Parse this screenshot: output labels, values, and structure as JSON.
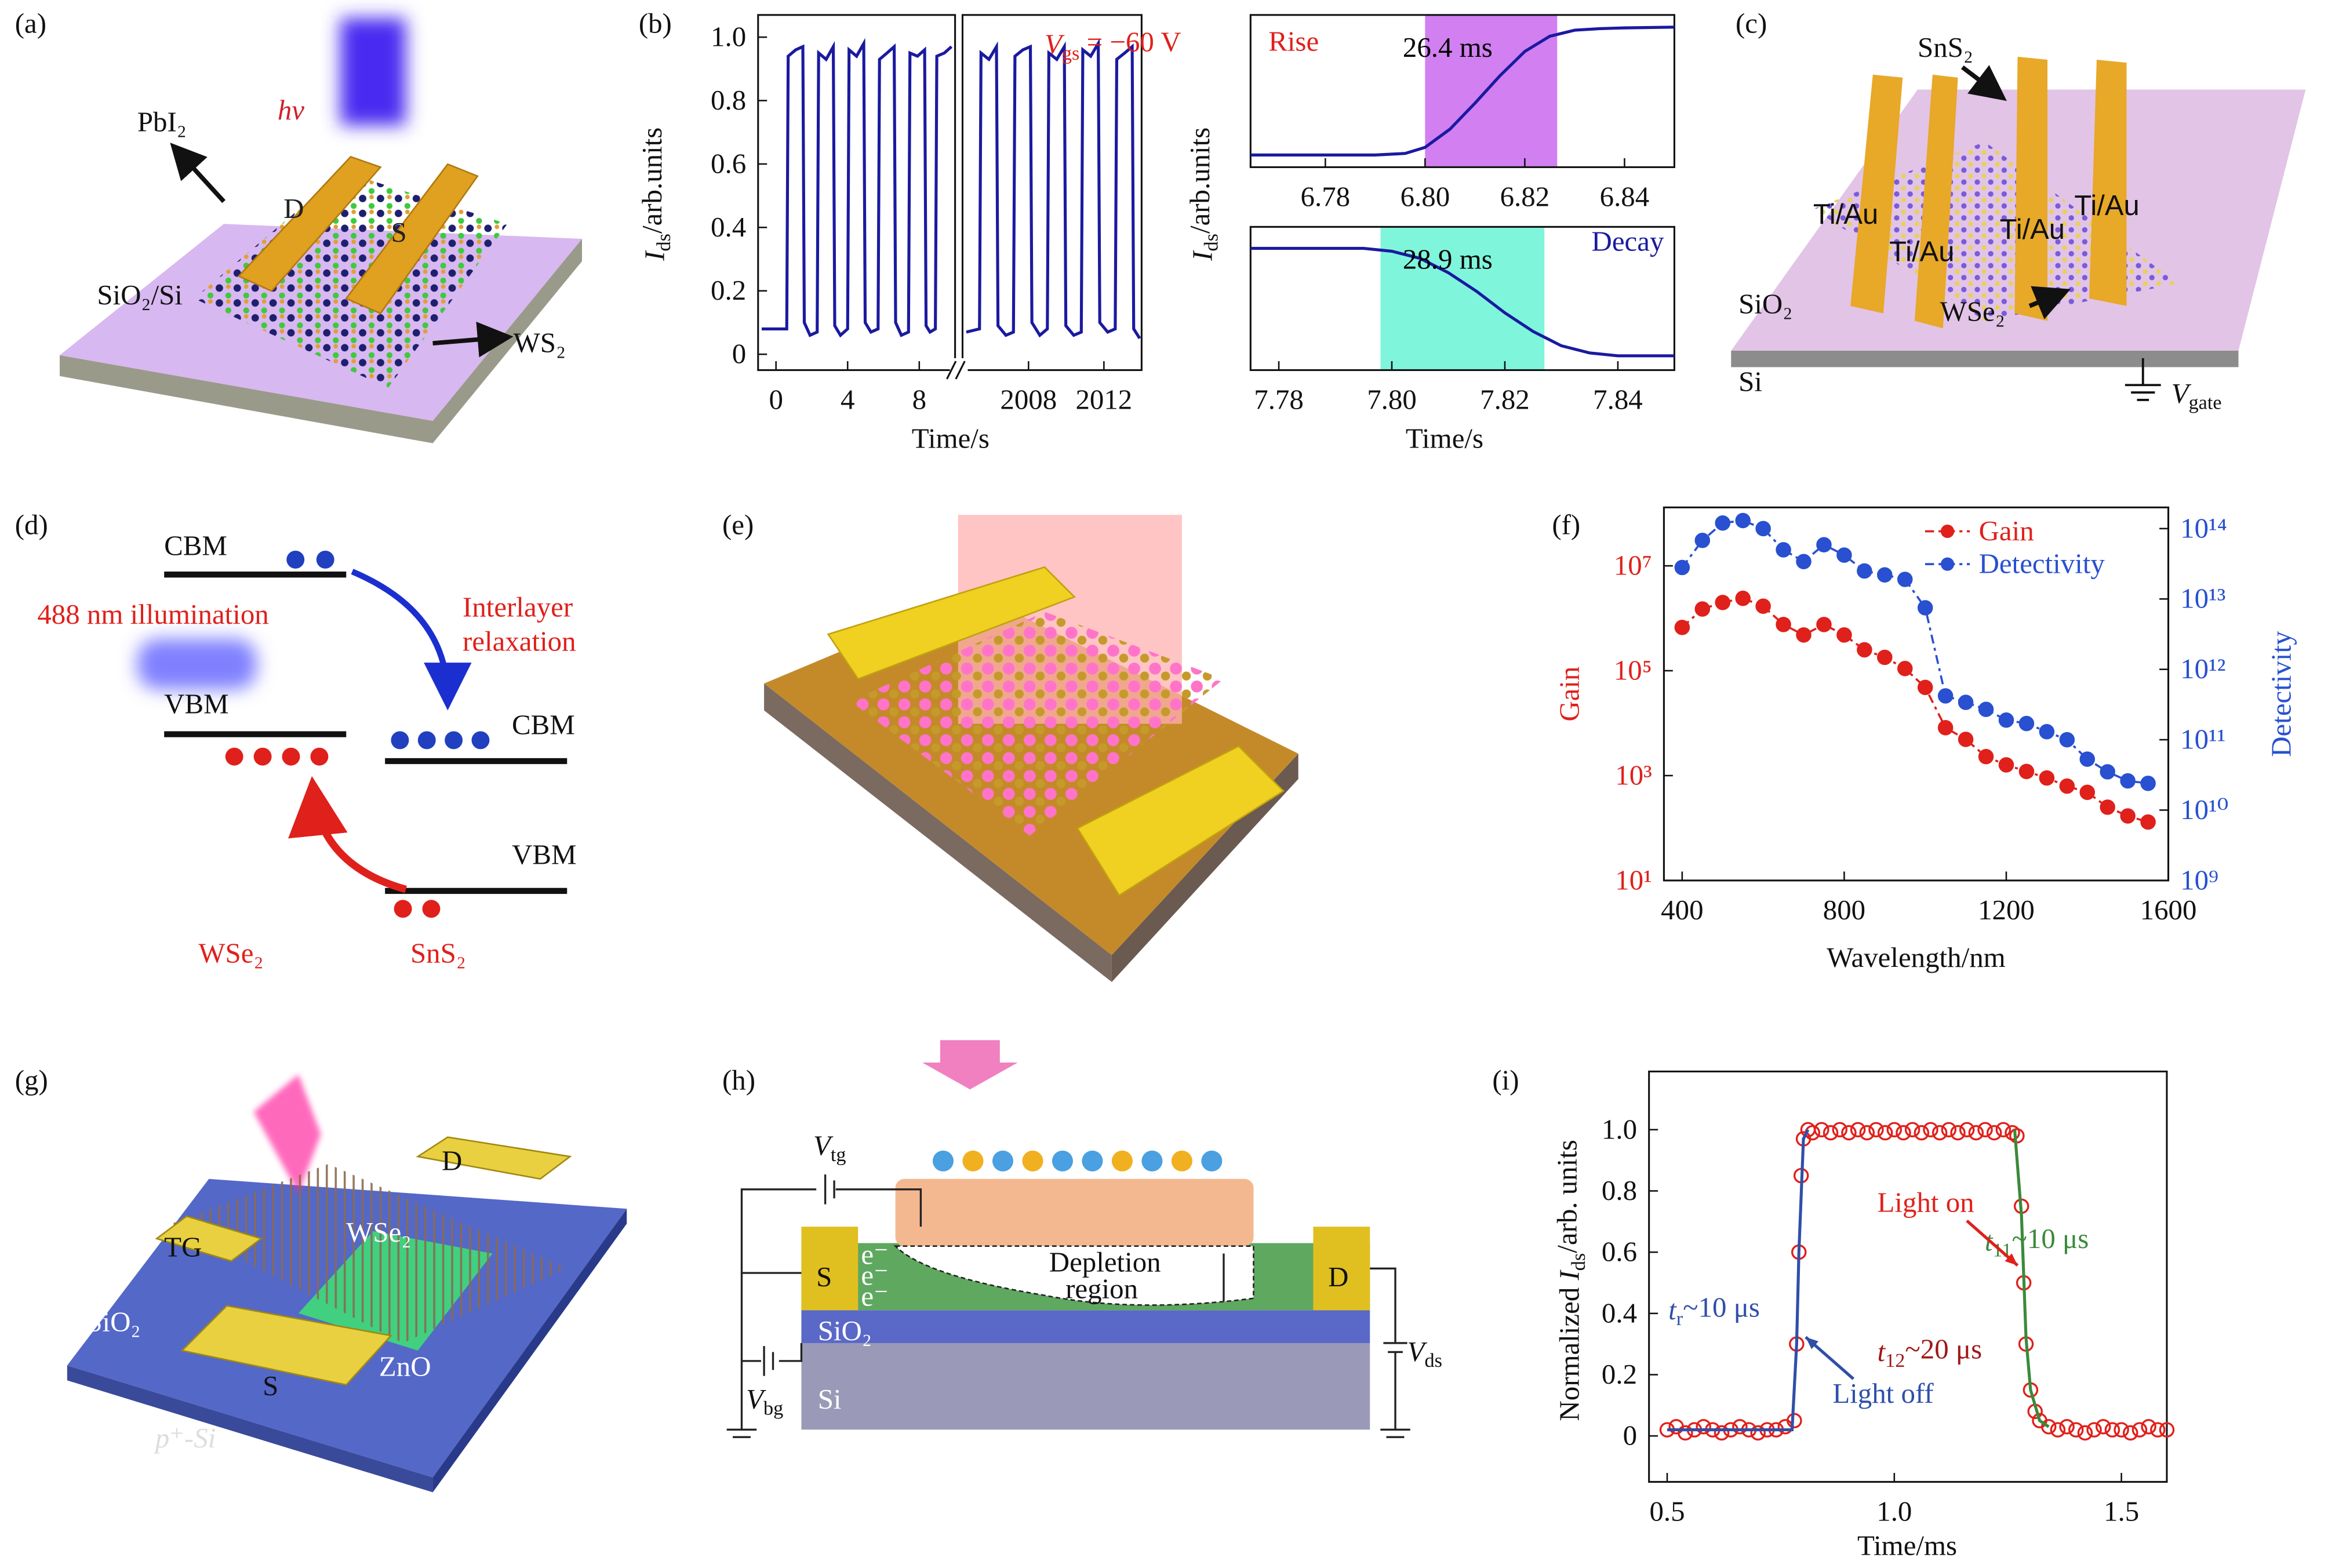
{
  "panels": {
    "a": {
      "label": "(a)",
      "hv": "hv",
      "pbi2": "PbI₂",
      "drain": "D",
      "source": "S",
      "substrate": "SiO₂/Si",
      "ws2": "WS₂"
    },
    "b": {
      "label": "(b)"
    },
    "c": {
      "label": "(c)",
      "sns2": "SnS₂",
      "contacts": [
        "Ti/Au",
        "Ti/Au",
        "Ti/Au",
        "Ti/Au"
      ],
      "oxide": "SiO₂",
      "wse2": "WSe₂",
      "si": "Si",
      "gate": [
        {
          "t": "V",
          "it": true
        },
        {
          "t": "gate",
          "sub": true
        }
      ]
    },
    "d": {
      "label": "(d)",
      "cbm_left": "CBM",
      "illumination": "488 nm illumination",
      "relax": [
        "Interlayer",
        "relaxation"
      ],
      "vbm_left": "VBM",
      "cbm_right": "CBM",
      "vbm_right": "VBM",
      "wse2": "WSe₂",
      "sns2": "SnS₂"
    },
    "e": {
      "label": "(e)"
    },
    "f": {
      "label": "(f)"
    },
    "g": {
      "label": "(g)",
      "drain": "D",
      "tg": "TG",
      "wse2": "WSe₂",
      "oxide": "SiO₂",
      "source": "S",
      "zno": "ZnO",
      "si": "p⁺-Si"
    },
    "h": {
      "label": "(h)",
      "vtg": [
        {
          "t": "V",
          "it": true
        },
        {
          "t": "tg",
          "sub": true
        }
      ],
      "source": "S",
      "electrons": [
        "e⁻",
        "e⁻",
        "e⁻"
      ],
      "depletion": [
        "Depletion",
        "region"
      ],
      "drain": "D",
      "oxide": "SiO₂",
      "vds": [
        {
          "t": "V",
          "it": true
        },
        {
          "t": "ds",
          "sub": true
        }
      ],
      "vbg": [
        {
          "t": "V",
          "it": true
        },
        {
          "t": "bg",
          "sub": true
        }
      ],
      "si": "Si"
    },
    "i": {
      "label": "(i)"
    }
  },
  "chart_data": [
    {
      "type": "line",
      "xlabel": "Time/s",
      "ylabel": [
        {
          "t": "I",
          "it": true
        },
        {
          "t": "ds",
          "sub": true
        },
        {
          "t": "/arb.units"
        }
      ],
      "annotations": [
        {
          "text": [
            {
              "t": "V",
              "it": true
            },
            {
              "t": "gs",
              "sub": true
            },
            {
              "t": " = −60 V"
            }
          ],
          "color": "#e0201b"
        }
      ],
      "x_segments": [
        [
          -1,
          10
        ],
        [
          2004.5,
          2014
        ]
      ],
      "xticks": [
        0,
        4,
        8,
        2008,
        2012
      ],
      "ylim": [
        -0.05,
        1.07
      ],
      "yticks": [
        0,
        0.2,
        0.4,
        0.6,
        0.8,
        {
          "value": 1,
          "label": "1.0"
        }
      ],
      "series": [
        {
          "color": "#1a1aa0",
          "x": [
            -0.8,
            0.6,
            0.68,
            1.1,
            1.5,
            1.58,
            1.9,
            2.3,
            2.38,
            2.8,
            3.2,
            3.28,
            3.6,
            4.0,
            4.08,
            4.5,
            4.9,
            4.98,
            5.3,
            5.7,
            5.78,
            6.2,
            6.6,
            6.68,
            7.0,
            7.4,
            7.48,
            7.9,
            8.3,
            8.38,
            8.6,
            8.9,
            8.98,
            9.4,
            9.8,
            null,
            2004.7,
            2005.4,
            2005.48,
            2005.9,
            2006.3,
            2006.38,
            2006.8,
            2007.2,
            2007.28,
            2007.7,
            2008.1,
            2008.18,
            2008.6,
            2009.0,
            2009.08,
            2009.5,
            2009.9,
            2009.98,
            2010.4,
            2010.8,
            2010.88,
            2011.3,
            2011.7,
            2011.78,
            2012.2,
            2012.6,
            2012.68,
            2013.1,
            2013.5,
            2013.58,
            2013.9
          ],
          "values": [
            0.08,
            0.08,
            0.94,
            0.96,
            0.97,
            0.1,
            0.06,
            0.07,
            0.95,
            0.93,
            0.97,
            0.09,
            0.06,
            0.08,
            0.96,
            0.94,
            0.98,
            0.1,
            0.07,
            0.08,
            0.93,
            0.95,
            0.97,
            0.1,
            0.06,
            0.07,
            0.95,
            0.94,
            0.96,
            0.09,
            0.07,
            0.08,
            0.94,
            0.95,
            0.97,
            null,
            0.07,
            0.08,
            0.95,
            0.93,
            0.97,
            0.09,
            0.06,
            0.07,
            0.94,
            0.96,
            0.97,
            0.1,
            0.06,
            0.08,
            0.95,
            0.93,
            0.97,
            0.09,
            0.06,
            0.07,
            0.96,
            0.94,
            0.98,
            0.1,
            0.07,
            0.08,
            0.93,
            0.95,
            0.97,
            0.08,
            0.05
          ]
        }
      ]
    },
    {
      "type": "line",
      "ylabel": [
        {
          "t": "I",
          "it": true
        },
        {
          "t": "ds",
          "sub": true
        },
        {
          "t": "/arb.units"
        }
      ],
      "annotations": [
        {
          "text": "Rise",
          "color": "#e0201b"
        },
        {
          "text": "26.4 ms",
          "color": "#000000"
        }
      ],
      "span": [
        6.8,
        6.8265
      ],
      "span_color": "#d27ff2",
      "xlim": [
        6.765,
        6.85
      ],
      "xticks": [
        6.78,
        {
          "value": 6.8,
          "label": "6.80"
        },
        6.82,
        6.84
      ],
      "ylim": [
        0,
        1
      ],
      "series": [
        {
          "color": "#1a1aa0",
          "x": [
            6.765,
            6.79,
            6.796,
            6.8,
            6.805,
            6.81,
            6.815,
            6.82,
            6.825,
            6.83,
            6.835,
            6.84,
            6.85
          ],
          "values": [
            0.08,
            0.08,
            0.09,
            0.13,
            0.25,
            0.42,
            0.6,
            0.76,
            0.86,
            0.9,
            0.91,
            0.915,
            0.92
          ]
        }
      ]
    },
    {
      "type": "line",
      "xlabel": "Time/s",
      "annotations": [
        {
          "text": "Decay",
          "color": "#1a1aa0"
        },
        {
          "text": "28.9 ms",
          "color": "#000000"
        }
      ],
      "span": [
        7.798,
        7.827
      ],
      "span_color": "#7ff5dc",
      "xlim": [
        7.775,
        7.85
      ],
      "xticks": [
        7.78,
        {
          "value": 7.8,
          "label": "7.80"
        },
        7.82,
        7.84
      ],
      "ylim": [
        0,
        1
      ],
      "series": [
        {
          "color": "#1a1aa0",
          "x": [
            7.775,
            7.795,
            7.8,
            7.805,
            7.81,
            7.815,
            7.82,
            7.825,
            7.83,
            7.835,
            7.84,
            7.85
          ],
          "values": [
            0.85,
            0.85,
            0.83,
            0.78,
            0.68,
            0.55,
            0.4,
            0.27,
            0.17,
            0.12,
            0.1,
            0.1
          ]
        }
      ]
    },
    {
      "type": "line",
      "xlabel": "Wavelength/nm",
      "ylabel": "Gain",
      "ylabel_color": "#e0201b",
      "y2label": "Detectivity",
      "y2label_color": "#2850d0",
      "legend": "upper right",
      "line_style": "dashdot",
      "marker": "circle",
      "xlim": [
        355,
        1600
      ],
      "xticks": [
        400,
        800,
        1200,
        1600
      ],
      "log_y": true,
      "ylim": [
        10,
        130000000
      ],
      "yticks": [
        {
          "value": 10,
          "label": "10¹"
        },
        {
          "value": 1000,
          "label": "10³"
        },
        {
          "value": 100000,
          "label": "10⁵"
        },
        {
          "value": 10000000,
          "label": "10⁷"
        }
      ],
      "log_y2": true,
      "y2lim": [
        1000000000,
        200000000000000
      ],
      "y2ticks": [
        {
          "value": 1000000000,
          "label": "10⁹"
        },
        {
          "value": 10000000000,
          "label": "10¹⁰"
        },
        {
          "value": 100000000000,
          "label": "10¹¹"
        },
        {
          "value": 1000000000000,
          "label": "10¹²"
        },
        {
          "value": 10000000000000,
          "label": "10¹³"
        },
        {
          "value": 100000000000000,
          "label": "10¹⁴"
        }
      ],
      "x": [
        400,
        450,
        500,
        550,
        600,
        650,
        700,
        750,
        800,
        850,
        900,
        950,
        1000,
        1050,
        1100,
        1150,
        1200,
        1250,
        1300,
        1350,
        1400,
        1450,
        1500,
        1550
      ],
      "series": [
        {
          "name": "Gain",
          "color": "#e0201b",
          "values": [
            670000,
            1500000,
            2000000,
            2400000,
            1700000,
            760000,
            480000,
            760000,
            480000,
            250000,
            180000,
            110000,
            48000,
            8200,
            4900,
            2300,
            1600,
            1200,
            900,
            630,
            480,
            250,
            170,
            130
          ]
        },
        {
          "name": "Detectivity",
          "color": "#2850d0",
          "axis": "y2",
          "values": [
            28000000000000,
            68000000000000,
            120000000000000,
            130000000000000,
            100000000000000,
            50000000000000,
            34000000000000,
            59000000000000,
            42000000000000,
            25000000000000,
            22000000000000,
            19000000000000,
            7500000000000,
            420000000000,
            340000000000,
            270000000000,
            190000000000,
            170000000000,
            130000000000,
            100000000000,
            53000000000,
            35000000000,
            26000000000,
            24000000000
          ]
        }
      ]
    },
    {
      "type": "line",
      "xlabel": "Time/ms",
      "ylabel": [
        {
          "t": "Normalized "
        },
        {
          "t": "I",
          "it": true
        },
        {
          "t": "ds",
          "sub": true
        },
        {
          "t": "/arb. units"
        }
      ],
      "annotations": [
        {
          "text": "Light on",
          "color": "#e0201b"
        },
        {
          "text": [
            {
              "t": "t",
              "it": true
            },
            {
              "t": "r",
              "sub": true
            },
            {
              "t": "~10 μs"
            }
          ],
          "color": "#2f4fa8"
        },
        {
          "text": [
            {
              "t": "t",
              "it": true
            },
            {
              "t": "11",
              "sub": true
            },
            {
              "t": "~10 μs"
            }
          ],
          "color": "#3a8a3a"
        },
        {
          "text": [
            {
              "t": "t",
              "it": true
            },
            {
              "t": "12",
              "sub": true
            },
            {
              "t": "~20 μs"
            }
          ],
          "color": "#a01818"
        },
        {
          "text": "Light off",
          "color": "#2f4fa8"
        }
      ],
      "xlim": [
        0.46,
        1.6
      ],
      "xticks": [
        0.5,
        {
          "value": 1,
          "label": "1.0"
        },
        1.5
      ],
      "ylim": [
        -0.15,
        1.19
      ],
      "yticks": [
        0,
        0.2,
        0.4,
        0.6,
        0.8,
        {
          "value": 1,
          "label": "1.0"
        }
      ],
      "series": [
        {
          "color": "#e0201b",
          "line": false,
          "marker": "open-circle",
          "x": [
            0.5,
            0.52,
            0.54,
            0.56,
            0.58,
            0.6,
            0.62,
            0.64,
            0.66,
            0.68,
            0.7,
            0.72,
            0.74,
            0.76,
            0.78,
            0.785,
            0.79,
            0.795,
            0.8,
            0.81,
            0.82,
            0.84,
            0.86,
            0.88,
            0.9,
            0.92,
            0.94,
            0.96,
            0.98,
            1.0,
            1.02,
            1.04,
            1.06,
            1.08,
            1.1,
            1.12,
            1.14,
            1.16,
            1.18,
            1.2,
            1.22,
            1.24,
            1.26,
            1.27,
            1.28,
            1.285,
            1.29,
            1.3,
            1.31,
            1.32,
            1.34,
            1.36,
            1.38,
            1.4,
            1.42,
            1.44,
            1.46,
            1.48,
            1.5,
            1.52,
            1.54,
            1.56,
            1.58,
            1.6
          ],
          "values": [
            0.02,
            0.03,
            0.01,
            0.02,
            0.03,
            0.02,
            0.01,
            0.02,
            0.03,
            0.02,
            0.01,
            0.02,
            0.02,
            0.03,
            0.05,
            0.3,
            0.6,
            0.85,
            0.97,
            1.0,
            0.99,
            1.0,
            0.99,
            1.0,
            0.99,
            1.0,
            0.99,
            1.0,
            0.99,
            1.0,
            0.99,
            1.0,
            0.99,
            1.0,
            0.99,
            1.0,
            0.99,
            1.0,
            0.99,
            1.0,
            0.99,
            1.0,
            0.99,
            0.98,
            0.75,
            0.5,
            0.3,
            0.15,
            0.08,
            0.05,
            0.03,
            0.02,
            0.03,
            0.02,
            0.01,
            0.02,
            0.03,
            0.02,
            0.02,
            0.01,
            0.02,
            0.03,
            0.02,
            0.02
          ]
        },
        {
          "color": "#2f4fa8",
          "x": [
            0.5,
            0.775,
            0.785,
            0.79,
            0.8,
            0.81
          ],
          "values": [
            0.02,
            0.02,
            0.3,
            0.6,
            0.97,
            1.0
          ]
        },
        {
          "color": "#3a8a3a",
          "x": [
            1.265,
            1.28,
            1.29,
            1.3,
            1.32,
            1.34
          ],
          "values": [
            1.0,
            0.72,
            0.32,
            0.15,
            0.05,
            0.03
          ]
        }
      ]
    }
  ]
}
